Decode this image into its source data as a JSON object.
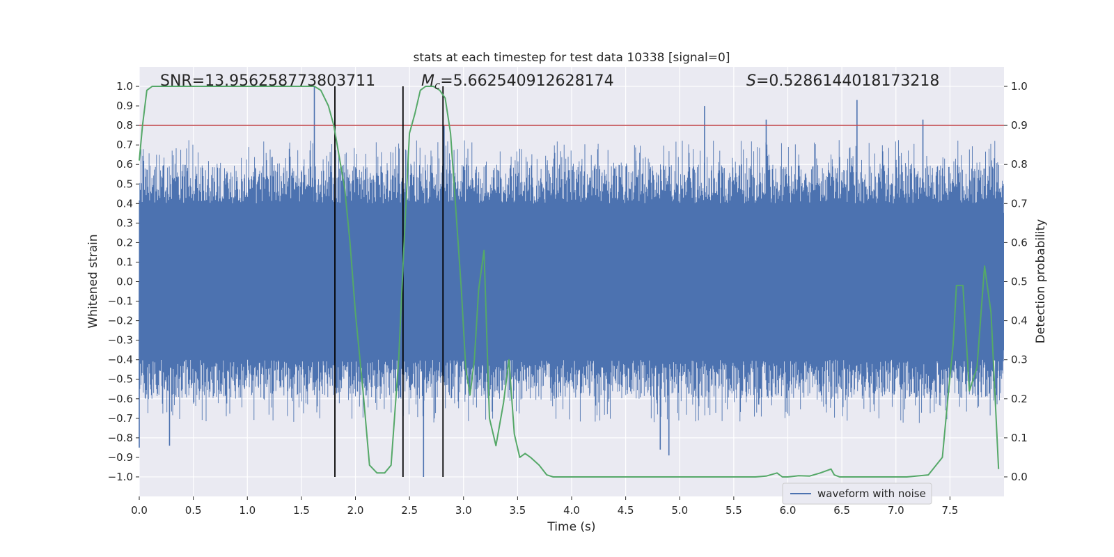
{
  "chart_data": {
    "type": "line",
    "title": "stats at each timestep for test data 10338 [signal=0]",
    "xlabel": "Time (s)",
    "ylabel_left": "Whitened strain",
    "ylabel_right": "Detection probability",
    "xlim": [
      0.0,
      8.0
    ],
    "ylim_left": [
      -1.1,
      1.1
    ],
    "ylim_right": [
      -0.05,
      1.05
    ],
    "x_ticks": [
      0.0,
      0.5,
      1.0,
      1.5,
      2.0,
      2.5,
      3.0,
      3.5,
      4.0,
      4.5,
      5.0,
      5.5,
      6.0,
      6.5,
      7.0,
      7.5
    ],
    "x_tick_labels": [
      "0.0",
      "0.5",
      "1.0",
      "1.5",
      "2.0",
      "2.5",
      "3.0",
      "3.5",
      "4.0",
      "4.5",
      "5.0",
      "5.5",
      "6.0",
      "6.5",
      "7.0",
      "7.5"
    ],
    "left_ticks": [
      1.0,
      0.9,
      0.8,
      0.7,
      0.6,
      0.5,
      0.4,
      0.3,
      0.2,
      0.1,
      0.0,
      -0.1,
      -0.2,
      -0.3,
      -0.4,
      -0.5,
      -0.6,
      -0.7,
      -0.8,
      -0.9,
      -1.0
    ],
    "left_tick_labels": [
      "1.0",
      "0.9",
      "0.8",
      "0.7",
      "0.6",
      "0.5",
      "0.4",
      "0.3",
      "0.2",
      "0.1",
      "0.0",
      "−0.1",
      "−0.2",
      "−0.3",
      "−0.4",
      "−0.5",
      "−0.6",
      "−0.7",
      "−0.8",
      "−0.9",
      "−1.0"
    ],
    "right_ticks": [
      1.0,
      0.9,
      0.8,
      0.7,
      0.6,
      0.5,
      0.4,
      0.3,
      0.2,
      0.1,
      0.0
    ],
    "right_tick_labels": [
      "1.0",
      "0.9",
      "0.8",
      "0.7",
      "0.6",
      "0.5",
      "0.4",
      "0.3",
      "0.2",
      "0.1",
      "0.0"
    ],
    "grid": true,
    "legend": {
      "entries": [
        "waveform with noise"
      ],
      "placement": "lower-right"
    },
    "series": [
      {
        "name": "waveform with noise",
        "axis": "left",
        "color": "#4c72b0",
        "description_values": {
          "core_amplitude": 0.4,
          "typical_peak_range": [
            -0.65,
            0.65
          ],
          "spikes": [
            {
              "x": 0.28,
              "y": -0.84
            },
            {
              "x": 1.62,
              "y": 1.0
            },
            {
              "x": 2.63,
              "y": -1.0
            },
            {
              "x": 2.82,
              "y": 0.8
            },
            {
              "x": 5.23,
              "y": 0.9
            },
            {
              "x": 5.8,
              "y": 0.83
            },
            {
              "x": 6.64,
              "y": 0.93
            },
            {
              "x": 7.25,
              "y": 0.83
            },
            {
              "x": 4.9,
              "y": -0.89
            },
            {
              "x": 4.82,
              "y": -0.86
            },
            {
              "x": 0.0,
              "y": -0.85
            }
          ]
        }
      },
      {
        "name": "detection probability",
        "axis": "right",
        "color": "#55a868",
        "x": [
          0.0,
          0.03,
          0.07,
          0.12,
          0.2,
          0.4,
          0.6,
          0.8,
          1.0,
          1.2,
          1.4,
          1.55,
          1.62,
          1.68,
          1.75,
          1.8,
          1.85,
          1.9,
          1.95,
          2.0,
          2.07,
          2.13,
          2.2,
          2.27,
          2.33,
          2.4,
          2.45,
          2.5,
          2.55,
          2.6,
          2.65,
          2.72,
          2.78,
          2.83,
          2.88,
          2.93,
          2.98,
          3.02,
          3.06,
          3.1,
          3.14,
          3.19,
          3.24,
          3.3,
          3.37,
          3.42,
          3.47,
          3.52,
          3.57,
          3.62,
          3.7,
          3.77,
          3.83,
          3.9,
          4.0,
          4.15,
          4.3,
          4.5,
          4.7,
          5.0,
          5.3,
          5.5,
          5.7,
          5.8,
          5.9,
          5.95,
          6.0,
          6.1,
          6.2,
          6.3,
          6.4,
          6.43,
          6.48,
          6.55,
          6.7,
          6.9,
          7.1,
          7.3,
          7.43,
          7.48,
          7.53,
          7.56,
          7.62,
          7.68,
          7.75,
          7.82,
          7.88,
          7.95
        ],
        "values": [
          0.81,
          0.9,
          0.99,
          1.0,
          1.0,
          1.0,
          1.0,
          1.0,
          1.0,
          1.0,
          1.0,
          1.0,
          1.0,
          0.99,
          0.95,
          0.9,
          0.82,
          0.74,
          0.6,
          0.42,
          0.22,
          0.03,
          0.01,
          0.01,
          0.03,
          0.3,
          0.6,
          0.88,
          0.93,
          0.99,
          1.0,
          1.0,
          0.99,
          0.97,
          0.88,
          0.68,
          0.48,
          0.28,
          0.21,
          0.3,
          0.48,
          0.58,
          0.15,
          0.08,
          0.19,
          0.3,
          0.11,
          0.05,
          0.06,
          0.05,
          0.03,
          0.005,
          0.0,
          0.0,
          0.0,
          0.0,
          0.0,
          0.0,
          0.0,
          0.0,
          0.0,
          0.0,
          0.0,
          0.002,
          0.01,
          0.0,
          0.0,
          0.003,
          0.002,
          0.01,
          0.02,
          0.005,
          0.0,
          0.0,
          0.0,
          0.0,
          0.0,
          0.005,
          0.05,
          0.2,
          0.34,
          0.49,
          0.49,
          0.22,
          0.28,
          0.54,
          0.42,
          0.02
        ]
      }
    ],
    "reference_lines": [
      {
        "orientation": "horizontal",
        "axis": "left",
        "value": 0.8,
        "color": "#c44e52"
      },
      {
        "orientation": "vertical",
        "value": 1.81,
        "color": "#000000"
      },
      {
        "orientation": "vertical",
        "value": 2.44,
        "color": "#000000"
      },
      {
        "orientation": "vertical",
        "value": 2.81,
        "color": "#000000"
      }
    ],
    "annotations": {
      "snr": "SNR=13.956258773803711",
      "mc_symbol": "M",
      "mc_subscript": "c",
      "mc_value": "=5.662540912628174",
      "s_symbol": "S",
      "s_value": "=0.5286144018173218"
    }
  }
}
